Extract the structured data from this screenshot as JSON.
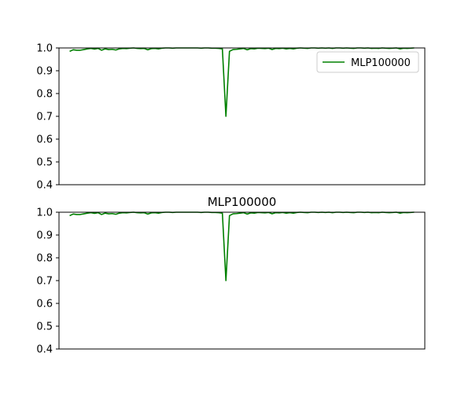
{
  "chart_data": [
    {
      "type": "line",
      "title": "",
      "xlabel": "",
      "ylabel": "",
      "ylim": [
        0.4,
        1.0
      ],
      "xlim": [
        -3,
        100
      ],
      "x_ticks_visible": false,
      "yticks": [
        0.4,
        0.5,
        0.6,
        0.7,
        0.8,
        0.9,
        1.0
      ],
      "ytick_labels": [
        "0.4",
        "0.5",
        "0.6",
        "0.7",
        "0.8",
        "0.9",
        "1.0"
      ],
      "grid": false,
      "legend": {
        "placement": "top-right",
        "entries": [
          "MLP100000"
        ]
      },
      "series": [
        {
          "name": "MLP100000",
          "color": "#008000",
          "x": [
            0,
            1,
            2,
            3,
            4,
            5,
            6,
            7,
            8,
            9,
            10,
            11,
            12,
            13,
            14,
            15,
            16,
            17,
            18,
            19,
            20,
            21,
            22,
            23,
            24,
            25,
            26,
            27,
            28,
            29,
            30,
            31,
            32,
            33,
            34,
            35,
            36,
            37,
            38,
            39,
            40,
            41,
            42,
            43,
            44,
            45,
            46,
            47,
            48,
            49,
            50,
            51,
            52,
            53,
            54,
            55,
            56,
            57,
            58,
            59,
            60,
            61,
            62,
            63,
            64,
            65,
            66,
            67,
            68,
            69,
            70,
            71,
            72,
            73,
            74,
            75,
            76,
            77,
            78,
            79,
            80,
            81,
            82,
            83,
            84,
            85,
            86,
            87,
            88,
            89,
            90,
            91,
            92,
            93,
            94,
            95,
            96,
            97
          ],
          "values": [
            0.985,
            0.992,
            0.99,
            0.99,
            0.993,
            0.996,
            0.998,
            0.995,
            0.998,
            0.99,
            0.996,
            0.993,
            0.994,
            0.991,
            0.996,
            0.998,
            0.997,
            0.999,
            1.0,
            0.998,
            0.997,
            0.998,
            0.992,
            0.997,
            0.998,
            0.996,
            0.999,
            1.0,
            1.0,
            0.999,
            1.0,
            1.0,
            1.0,
            1.0,
            1.0,
            1.0,
            1.0,
            0.999,
            1.0,
            1.0,
            0.999,
            0.999,
            0.998,
            0.996,
            0.7,
            0.985,
            0.993,
            0.994,
            0.996,
            0.998,
            0.992,
            0.997,
            0.996,
            0.999,
            0.998,
            0.997,
            0.999,
            0.993,
            0.998,
            0.997,
            0.999,
            0.996,
            0.998,
            0.996,
            0.999,
            1.0,
            0.999,
            0.998,
            1.0,
            1.0,
            0.999,
            1.0,
            0.999,
            1.0,
            0.998,
            1.0,
            1.0,
            0.999,
            1.0,
            0.999,
            0.998,
            1.0,
            1.0,
            0.999,
            1.0,
            0.998,
            0.999,
            0.998,
            1.0,
            0.999,
            0.998,
            0.999,
            1.0,
            0.996,
            0.999,
            0.998,
            0.999,
            1.0
          ]
        }
      ]
    },
    {
      "type": "line",
      "title": "MLP100000",
      "xlabel": "",
      "ylabel": "",
      "ylim": [
        0.4,
        1.0
      ],
      "xlim": [
        -3,
        100
      ],
      "x_ticks_visible": false,
      "yticks": [
        0.4,
        0.5,
        0.6,
        0.7,
        0.8,
        0.9,
        1.0
      ],
      "ytick_labels": [
        "0.4",
        "0.5",
        "0.6",
        "0.7",
        "0.8",
        "0.9",
        "1.0"
      ],
      "grid": false,
      "legend": null,
      "series": [
        {
          "color": "#008000",
          "x": [
            0,
            1,
            2,
            3,
            4,
            5,
            6,
            7,
            8,
            9,
            10,
            11,
            12,
            13,
            14,
            15,
            16,
            17,
            18,
            19,
            20,
            21,
            22,
            23,
            24,
            25,
            26,
            27,
            28,
            29,
            30,
            31,
            32,
            33,
            34,
            35,
            36,
            37,
            38,
            39,
            40,
            41,
            42,
            43,
            44,
            45,
            46,
            47,
            48,
            49,
            50,
            51,
            52,
            53,
            54,
            55,
            56,
            57,
            58,
            59,
            60,
            61,
            62,
            63,
            64,
            65,
            66,
            67,
            68,
            69,
            70,
            71,
            72,
            73,
            74,
            75,
            76,
            77,
            78,
            79,
            80,
            81,
            82,
            83,
            84,
            85,
            86,
            87,
            88,
            89,
            90,
            91,
            92,
            93,
            94,
            95,
            96,
            97
          ],
          "values": [
            0.985,
            0.992,
            0.99,
            0.99,
            0.993,
            0.996,
            0.998,
            0.995,
            0.998,
            0.99,
            0.996,
            0.993,
            0.994,
            0.991,
            0.996,
            0.998,
            0.997,
            0.999,
            1.0,
            0.998,
            0.997,
            0.998,
            0.992,
            0.997,
            0.998,
            0.996,
            0.999,
            1.0,
            1.0,
            0.999,
            1.0,
            1.0,
            1.0,
            1.0,
            1.0,
            1.0,
            1.0,
            0.999,
            1.0,
            1.0,
            0.999,
            0.999,
            0.998,
            0.996,
            0.7,
            0.985,
            0.993,
            0.994,
            0.996,
            0.998,
            0.992,
            0.997,
            0.996,
            0.999,
            0.998,
            0.997,
            0.999,
            0.993,
            0.998,
            0.997,
            0.999,
            0.996,
            0.998,
            0.996,
            0.999,
            1.0,
            0.999,
            0.998,
            1.0,
            1.0,
            0.999,
            1.0,
            0.999,
            1.0,
            0.998,
            1.0,
            1.0,
            0.999,
            1.0,
            0.999,
            0.998,
            1.0,
            1.0,
            0.999,
            1.0,
            0.998,
            0.999,
            0.998,
            1.0,
            0.999,
            0.998,
            0.999,
            1.0,
            0.996,
            0.999,
            0.998,
            0.999,
            1.0
          ]
        }
      ]
    }
  ]
}
